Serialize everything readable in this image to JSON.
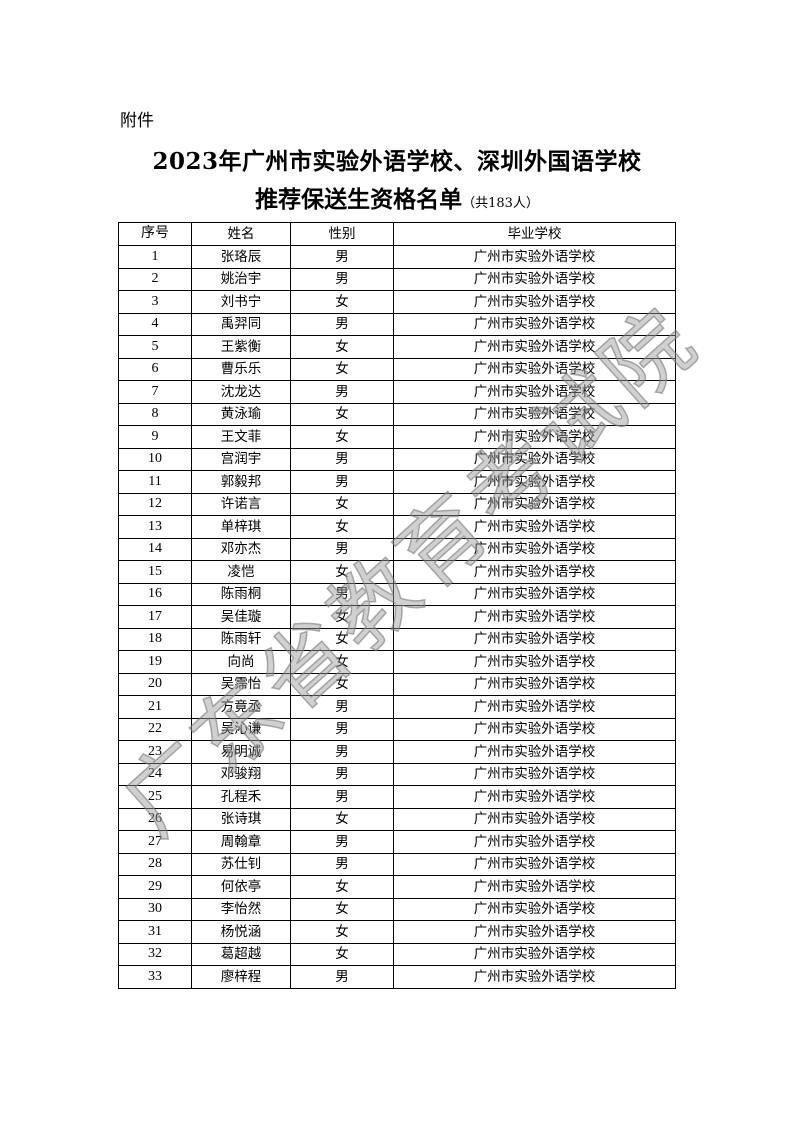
{
  "attachment_label": "附件",
  "title_line1": "2023年广州市实验外语学校、深圳外国语学校",
  "title_line2": "推荐保送生资格名单",
  "title_count": "（共183人）",
  "watermark": "广东省教育考试院",
  "table": {
    "headers": [
      "序号",
      "姓名",
      "性别",
      "毕业学校"
    ],
    "rows": [
      [
        "1",
        "张珞辰",
        "男",
        "广州市实验外语学校"
      ],
      [
        "2",
        "姚治宇",
        "男",
        "广州市实验外语学校"
      ],
      [
        "3",
        "刘书宁",
        "女",
        "广州市实验外语学校"
      ],
      [
        "4",
        "禹羿同",
        "男",
        "广州市实验外语学校"
      ],
      [
        "5",
        "王紫衡",
        "女",
        "广州市实验外语学校"
      ],
      [
        "6",
        "曹乐乐",
        "女",
        "广州市实验外语学校"
      ],
      [
        "7",
        "沈龙达",
        "男",
        "广州市实验外语学校"
      ],
      [
        "8",
        "黄泳瑜",
        "女",
        "广州市实验外语学校"
      ],
      [
        "9",
        "王文菲",
        "女",
        "广州市实验外语学校"
      ],
      [
        "10",
        "宫润宇",
        "男",
        "广州市实验外语学校"
      ],
      [
        "11",
        "郭毅邦",
        "男",
        "广州市实验外语学校"
      ],
      [
        "12",
        "许诺言",
        "女",
        "广州市实验外语学校"
      ],
      [
        "13",
        "单梓琪",
        "女",
        "广州市实验外语学校"
      ],
      [
        "14",
        "邓亦杰",
        "男",
        "广州市实验外语学校"
      ],
      [
        "15",
        "凌恺",
        "女",
        "广州市实验外语学校"
      ],
      [
        "16",
        "陈雨桐",
        "男",
        "广州市实验外语学校"
      ],
      [
        "17",
        "吴佳璇",
        "女",
        "广州市实验外语学校"
      ],
      [
        "18",
        "陈雨轩",
        "女",
        "广州市实验外语学校"
      ],
      [
        "19",
        "向尚",
        "女",
        "广州市实验外语学校"
      ],
      [
        "20",
        "吴霈怡",
        "女",
        "广州市实验外语学校"
      ],
      [
        "21",
        "方竟丞",
        "男",
        "广州市实验外语学校"
      ],
      [
        "22",
        "吴沁谦",
        "男",
        "广州市实验外语学校"
      ],
      [
        "23",
        "易明诚",
        "男",
        "广州市实验外语学校"
      ],
      [
        "24",
        "邓骏翔",
        "男",
        "广州市实验外语学校"
      ],
      [
        "25",
        "孔程禾",
        "男",
        "广州市实验外语学校"
      ],
      [
        "26",
        "张诗琪",
        "女",
        "广州市实验外语学校"
      ],
      [
        "27",
        "周翰章",
        "男",
        "广州市实验外语学校"
      ],
      [
        "28",
        "苏仕钊",
        "男",
        "广州市实验外语学校"
      ],
      [
        "29",
        "何依亭",
        "女",
        "广州市实验外语学校"
      ],
      [
        "30",
        "李怡然",
        "女",
        "广州市实验外语学校"
      ],
      [
        "31",
        "杨悦涵",
        "女",
        "广州市实验外语学校"
      ],
      [
        "32",
        "葛超越",
        "女",
        "广州市实验外语学校"
      ],
      [
        "33",
        "廖梓程",
        "男",
        "广州市实验外语学校"
      ]
    ]
  }
}
